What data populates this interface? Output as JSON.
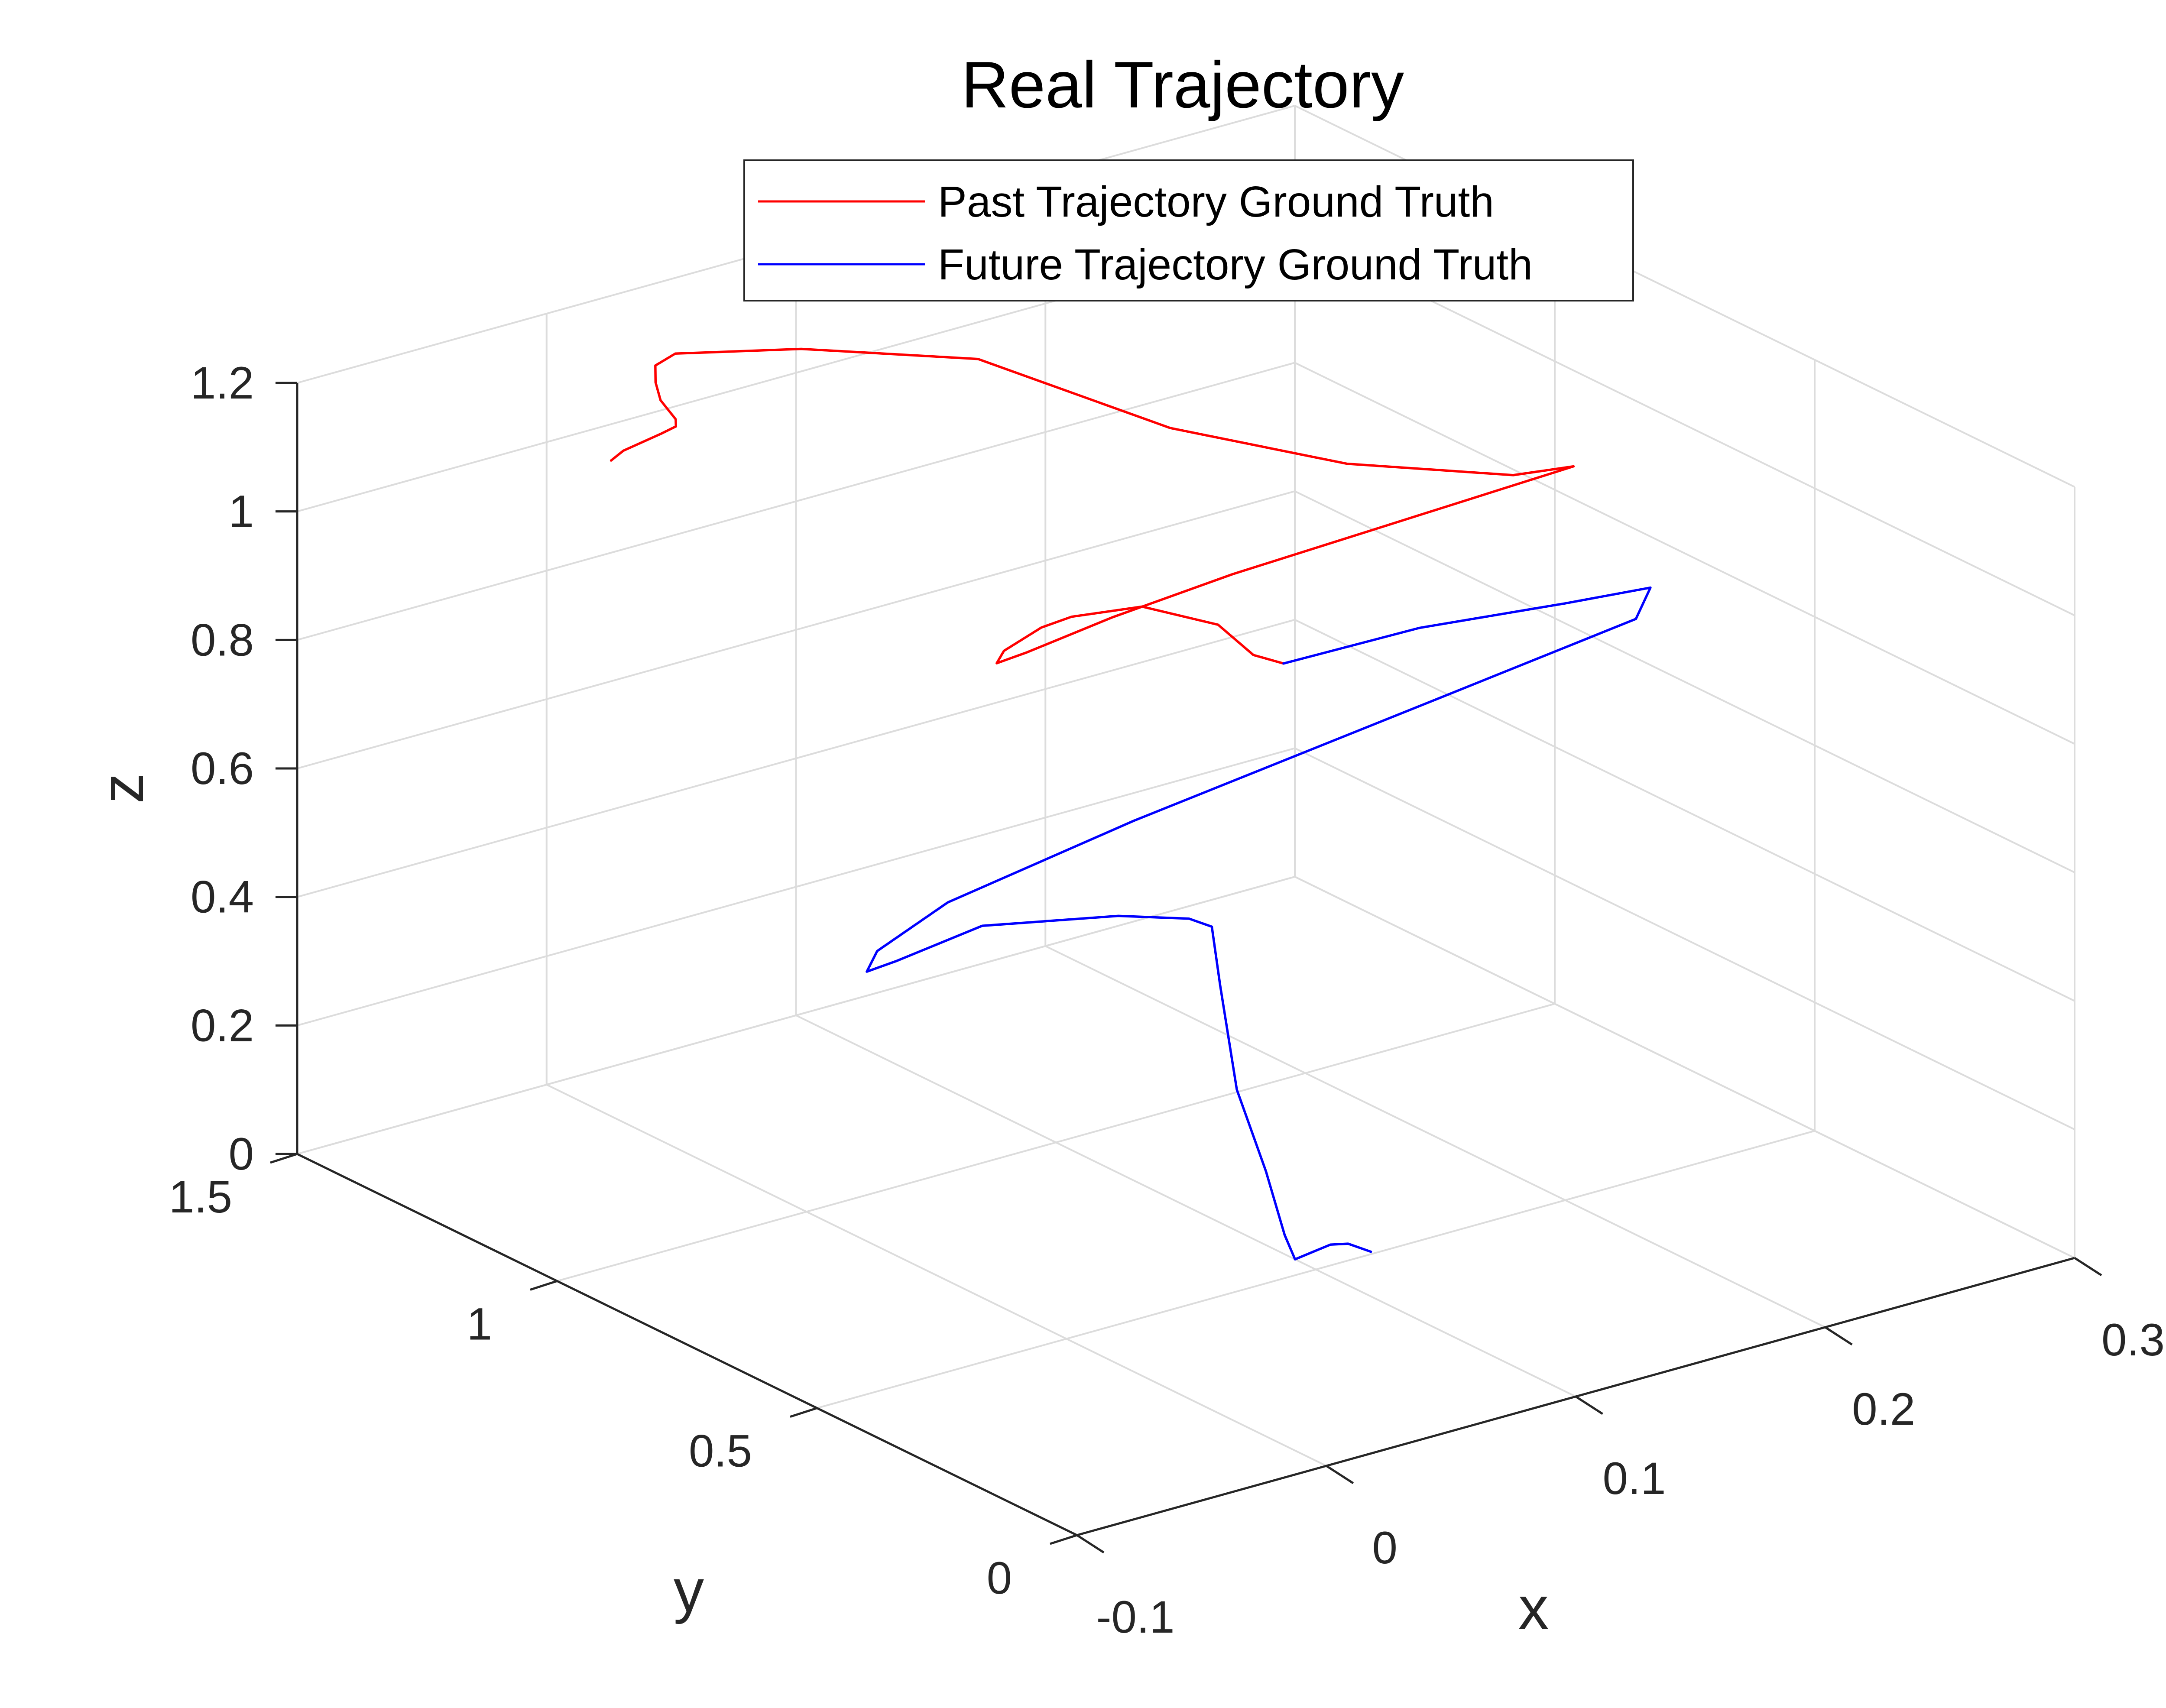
{
  "chart_data": {
    "type": "line",
    "title": "Real Trajectory",
    "xlabel": "x",
    "ylabel": "y",
    "zlabel": "z",
    "xlim": [
      -0.1,
      0.3
    ],
    "ylim": [
      0,
      1.5
    ],
    "zlim": [
      0,
      1.2
    ],
    "x_ticks": [
      "-0.1",
      "0",
      "0.1",
      "0.2",
      "0.3"
    ],
    "y_ticks": [
      "0",
      "0.5",
      "1",
      "1.5"
    ],
    "z_ticks": [
      "0",
      "0.2",
      "0.4",
      "0.6",
      "0.8",
      "1",
      "1.2"
    ],
    "grid": true,
    "legend_position": "top-center",
    "series": [
      {
        "name": "Past Trajectory Ground Truth",
        "color": "#ff0000",
        "points": [
          [
            -0.02,
            1.28,
            1.08
          ],
          [
            -0.015,
            1.28,
            1.09
          ],
          [
            0.0,
            1.28,
            1.1
          ],
          [
            0.006,
            1.28,
            1.105
          ],
          [
            0.008,
            1.29,
            1.11
          ],
          [
            0.004,
            1.3,
            1.14
          ],
          [
            0.002,
            1.3,
            1.17
          ],
          [
            0.004,
            1.31,
            1.19
          ],
          [
            0.012,
            1.31,
            1.2
          ],
          [
            0.05,
            1.25,
            1.19
          ],
          [
            0.1,
            1.15,
            1.16
          ],
          [
            0.15,
            1.02,
            1.05
          ],
          [
            0.2,
            0.92,
            0.98
          ],
          [
            0.25,
            0.84,
            0.94
          ],
          [
            0.27,
            0.82,
            0.94
          ],
          [
            0.2,
            0.85,
            0.91
          ],
          [
            0.15,
            0.9,
            0.87
          ],
          [
            0.11,
            0.94,
            0.83
          ],
          [
            0.08,
            0.96,
            0.8
          ],
          [
            0.07,
            0.97,
            0.79
          ],
          [
            0.075,
            0.98,
            0.8
          ],
          [
            0.09,
            0.98,
            0.82
          ],
          [
            0.1,
            0.97,
            0.83
          ],
          [
            0.12,
            0.93,
            0.84
          ],
          [
            0.14,
            0.88,
            0.81
          ],
          [
            0.15,
            0.86,
            0.76
          ],
          [
            0.16,
            0.85,
            0.74
          ]
        ]
      },
      {
        "name": "Future Trajectory Ground Truth",
        "color": "#0000ff",
        "points": [
          [
            0.16,
            0.85,
            0.74
          ],
          [
            0.2,
            0.78,
            0.78
          ],
          [
            0.25,
            0.74,
            0.78
          ],
          [
            0.28,
            0.72,
            0.78
          ],
          [
            0.27,
            0.7,
            0.75
          ],
          [
            0.2,
            0.75,
            0.68
          ],
          [
            0.1,
            0.85,
            0.56
          ],
          [
            0.04,
            0.92,
            0.47
          ],
          [
            0.02,
            0.96,
            0.4
          ],
          [
            0.02,
            0.98,
            0.36
          ],
          [
            0.03,
            0.97,
            0.37
          ],
          [
            0.06,
            0.95,
            0.4
          ],
          [
            0.1,
            0.88,
            0.4
          ],
          [
            0.12,
            0.84,
            0.39
          ],
          [
            0.125,
            0.82,
            0.38
          ],
          [
            0.12,
            0.78,
            0.31
          ],
          [
            0.11,
            0.7,
            0.19
          ],
          [
            0.105,
            0.62,
            0.1
          ],
          [
            0.1,
            0.56,
            0.03
          ],
          [
            0.1,
            0.54,
            0.0
          ],
          [
            0.105,
            0.53,
            0.01
          ],
          [
            0.11,
            0.52,
            0.02
          ],
          [
            0.115,
            0.51,
            0.02
          ],
          [
            0.12,
            0.49,
            0.01
          ]
        ]
      }
    ]
  }
}
